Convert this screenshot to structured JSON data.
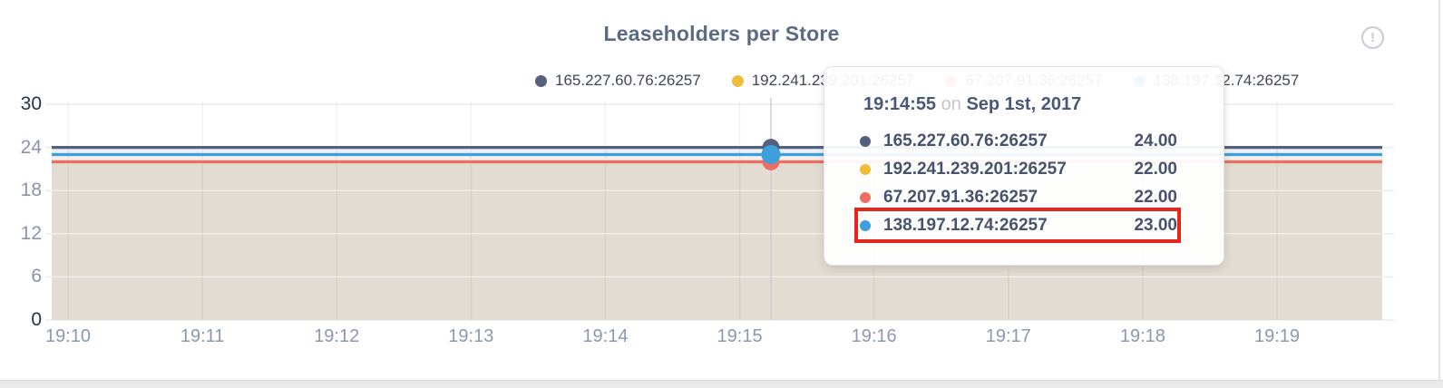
{
  "page": {
    "title": "Leaseholders per Store",
    "info_icon_glyph": "!"
  },
  "legend": {
    "items": [
      {
        "label": "165.227.60.76:26257",
        "color": "#55607f"
      },
      {
        "label": "192.241.239.201:26257",
        "color": "#eebd3a"
      },
      {
        "label": "67.207.91.36:26257",
        "color": "#ee6e64"
      },
      {
        "label": "138.197.12.74:26257",
        "color": "#3da0dc"
      }
    ]
  },
  "tooltip": {
    "time": "19:14:55",
    "connector": "on",
    "date": "Sep 1st, 2017",
    "rows": [
      {
        "series": "165.227.60.76:26257",
        "value": "24.00",
        "color": "#55607f",
        "highlighted": false
      },
      {
        "series": "192.241.239.201:26257",
        "value": "22.00",
        "color": "#eebd3a",
        "highlighted": false
      },
      {
        "series": "67.207.91.36:26257",
        "value": "22.00",
        "color": "#ee6e64",
        "highlighted": false
      },
      {
        "series": "138.197.12.74:26257",
        "value": "23.00",
        "color": "#3da0dc",
        "highlighted": true
      }
    ],
    "highlight_color": "#e8251c"
  },
  "chart_data": {
    "type": "area",
    "title": "Leaseholders per Store",
    "xlabel": "",
    "ylabel": "",
    "x_ticks": [
      "19:10",
      "19:11",
      "19:12",
      "19:13",
      "19:14",
      "19:15",
      "19:16",
      "19:17",
      "19:18",
      "19:19"
    ],
    "y_ticks": [
      0,
      6,
      12,
      18,
      24,
      30
    ],
    "ylim": [
      0,
      30
    ],
    "grid": true,
    "legend_position": "top",
    "series": [
      {
        "name": "165.227.60.76:26257",
        "color": "#55607f",
        "values": [
          24,
          24,
          24,
          24,
          24,
          24,
          24,
          24,
          24,
          24
        ]
      },
      {
        "name": "192.241.239.201:26257",
        "color": "#eebd3a",
        "values": [
          22,
          22,
          22,
          22,
          22,
          22,
          22,
          22,
          22,
          22
        ]
      },
      {
        "name": "67.207.91.36:26257",
        "color": "#ee6e64",
        "values": [
          22,
          22,
          22,
          22,
          22,
          22,
          22,
          22,
          22,
          22
        ]
      },
      {
        "name": "138.197.12.74:26257",
        "color": "#3da0dc",
        "values": [
          23,
          23,
          23,
          23,
          23,
          23,
          23,
          23,
          23,
          23
        ]
      }
    ],
    "band_fills": {
      "between_24_and_23": "#edf1f5",
      "between_23_and_22": "#f1eff0",
      "below_22": "#e2dcd3"
    },
    "hover_point": {
      "time": "19:14:55",
      "date": "Sep 1st, 2017",
      "values": {
        "165.227.60.76:26257": 24.0,
        "192.241.239.201:26257": 22.0,
        "67.207.91.36:26257": 22.0,
        "138.197.12.74:26257": 23.0
      }
    }
  }
}
